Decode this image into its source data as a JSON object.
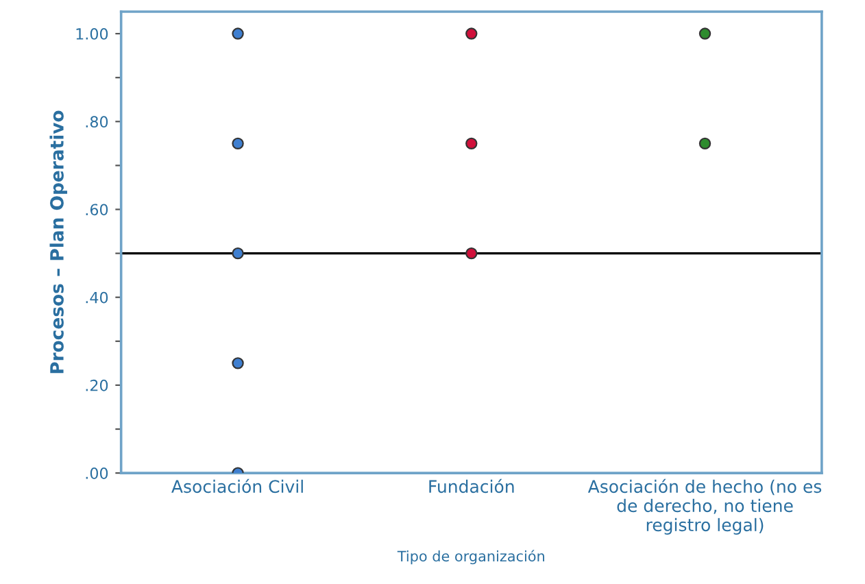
{
  "chart_data": {
    "type": "scatter",
    "xlabel": "Tipo de organización",
    "ylabel": "Procesos – Plan Operativo",
    "categories": [
      "Asociación Civil",
      "Fundación",
      "Asociación de hecho (no es\nde derecho, no tiene\nregistro legal)"
    ],
    "series": [
      {
        "color": "#3f7fd0",
        "x": [
          "Asociación Civil",
          "Asociación Civil",
          "Asociación Civil",
          "Asociación Civil",
          "Asociación Civil"
        ],
        "values": [
          1.0,
          0.75,
          0.5,
          0.25,
          0.0
        ]
      },
      {
        "color": "#d0103a",
        "x": [
          "Fundación",
          "Fundación",
          "Fundación"
        ],
        "values": [
          1.0,
          0.75,
          0.5
        ]
      },
      {
        "color": "#2e8b2e",
        "x": [
          "Asociación de hecho (no es\nde derecho, no tiene\nregistro legal)",
          "Asociación de hecho (no es\nde derecho, no tiene\nregistro legal)"
        ],
        "values": [
          1.0,
          0.75
        ]
      }
    ],
    "ylim": [
      0,
      1.05
    ],
    "yticks": [
      {
        "value": 0,
        "label": ".00"
      },
      {
        "value": 0.1,
        "label": null
      },
      {
        "value": 0.2,
        "label": ".20"
      },
      {
        "value": 0.3,
        "label": null
      },
      {
        "value": 0.4,
        "label": ".40"
      },
      {
        "value": 0.5,
        "label": null
      },
      {
        "value": 0.6,
        "label": ".60"
      },
      {
        "value": 0.7,
        "label": null
      },
      {
        "value": 0.8,
        "label": ".80"
      },
      {
        "value": 0.9,
        "label": null
      },
      {
        "value": 1.0,
        "label": "1.00"
      }
    ],
    "ref_lines": [
      {
        "axis": "y",
        "value": 0.5,
        "color": "#000000"
      }
    ],
    "marker": "circle",
    "grid": false,
    "legend": false
  }
}
